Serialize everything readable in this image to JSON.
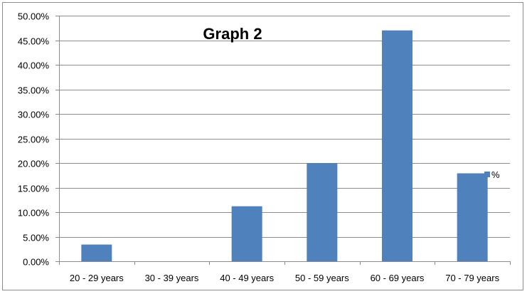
{
  "chart_data": {
    "type": "bar",
    "title": "Graph 2",
    "categories": [
      "20 - 29 years",
      "30 - 39 years",
      "40 - 49 years",
      "50 - 59 years",
      "60 - 69 years",
      "70 - 79 years"
    ],
    "series": [
      {
        "name": "%",
        "values": [
          3.4,
          0.0,
          11.2,
          20.0,
          47.0,
          17.9
        ]
      }
    ],
    "ylim": [
      0,
      50
    ],
    "yticks": [
      "0.00%",
      "5.00%",
      "10.00%",
      "15.00%",
      "20.00%",
      "25.00%",
      "30.00%",
      "35.00%",
      "40.00%",
      "45.00%",
      "50.00%"
    ],
    "grid": true,
    "legend": "right",
    "bar_color": "#4f81bd",
    "grid_color": "#8c8c8c"
  }
}
